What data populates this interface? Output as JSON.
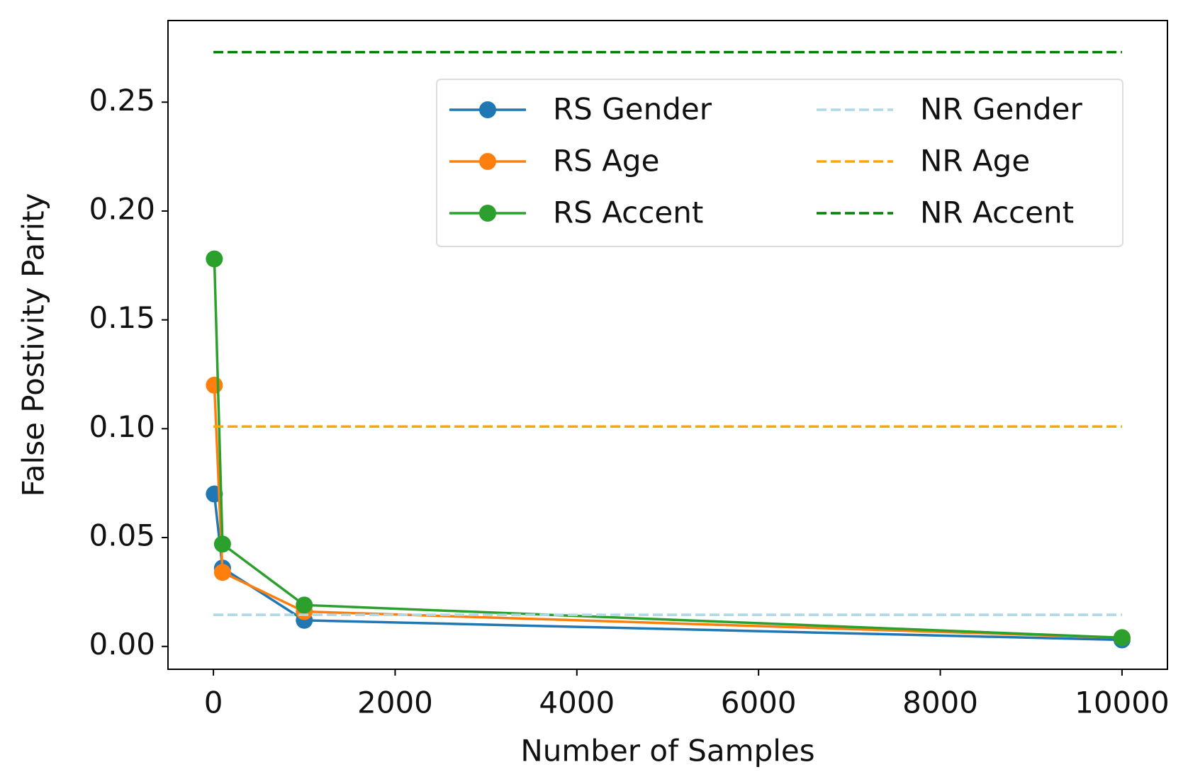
{
  "chart_data": {
    "type": "line",
    "xlabel": "Number of Samples",
    "ylabel": "False Postivity Parity",
    "xlim": [
      -500,
      10500
    ],
    "xticks": [
      0,
      2000,
      4000,
      6000,
      8000,
      10000
    ],
    "ylim": [
      -0.0105,
      0.2875
    ],
    "yticks": [
      {
        "value": 0,
        "label": "0.00"
      },
      0.05,
      {
        "value": 0.1,
        "label": "0.10"
      },
      0.15,
      {
        "value": 0.2,
        "label": "0.20"
      },
      0.25
    ],
    "grid": false,
    "legend": "upper right",
    "legend_columns": 2,
    "series": [
      {
        "name": "RS Gender",
        "color": "#1f77b4",
        "linestyle": "solid",
        "marker": "circle",
        "x": [
          10,
          100,
          1000,
          10000
        ],
        "values": [
          0.07,
          0.036,
          0.012,
          0.003
        ]
      },
      {
        "name": "RS Age",
        "color": "#ff7f0e",
        "linestyle": "solid",
        "marker": "circle",
        "x": [
          10,
          100,
          1000,
          10000
        ],
        "values": [
          0.12,
          0.034,
          0.016,
          0.004
        ]
      },
      {
        "name": "RS Accent",
        "color": "#2ca02c",
        "linestyle": "solid",
        "marker": "circle",
        "x": [
          10,
          100,
          1000,
          10000
        ],
        "values": [
          0.178,
          0.047,
          0.019,
          0.004
        ]
      },
      {
        "name": "NR Gender",
        "color": "#add8e6",
        "linestyle": "dashed",
        "marker": "none",
        "x": [
          0,
          10000
        ],
        "values": [
          0.0145,
          0.0145
        ]
      },
      {
        "name": "NR Age",
        "color": "#ffa500",
        "linestyle": "dashed",
        "marker": "none",
        "x": [
          0,
          10000
        ],
        "values": [
          0.101,
          0.101
        ]
      },
      {
        "name": "NR Accent",
        "color": "#008000",
        "linestyle": "dashed",
        "marker": "none",
        "x": [
          0,
          10000
        ],
        "values": [
          0.273,
          0.273
        ]
      }
    ]
  }
}
